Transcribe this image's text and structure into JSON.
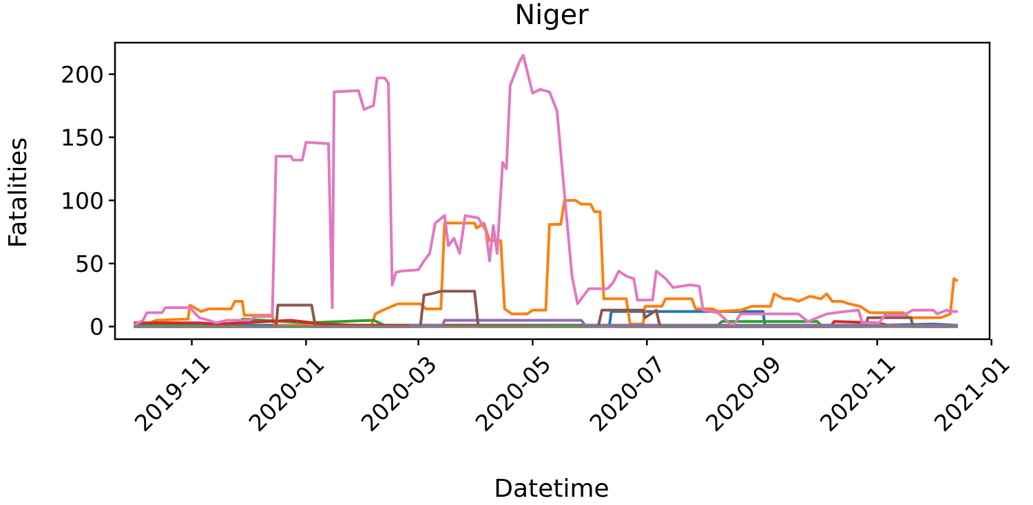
{
  "chart_data": {
    "type": "line",
    "title": "Niger",
    "xlabel": "Datetime",
    "ylabel": "Fatalities",
    "grid": false,
    "xlim": [
      "2019-09-21",
      "2020-12-31"
    ],
    "ylim": [
      -10,
      225
    ],
    "x_ticks": [
      "2019-11-01",
      "2020-01-01",
      "2020-03-01",
      "2020-05-01",
      "2020-07-01",
      "2020-09-01",
      "2020-11-01",
      "2021-01-01"
    ],
    "x_tick_labels": [
      "2019-11",
      "2020-01",
      "2020-03",
      "2020-05",
      "2020-07",
      "2020-09",
      "2020-11",
      "2021-01"
    ],
    "y_ticks": [
      0,
      50,
      100,
      150,
      200
    ],
    "series_order": [
      "blue",
      "orange",
      "green",
      "red",
      "purple",
      "brown",
      "pink",
      "gray"
    ],
    "colors": {
      "blue": "#1f77b4",
      "orange": "#ff7f0e",
      "green": "#2ca02c",
      "red": "#d62728",
      "purple": "#9467bd",
      "brown": "#8c564b",
      "pink": "#e377c2",
      "gray": "#7f7f7f"
    },
    "series": {
      "blue": [
        [
          "2019-10-01",
          1
        ],
        [
          "2019-11-01",
          1
        ],
        [
          "2020-01-01",
          1
        ],
        [
          "2020-06-11",
          1
        ],
        [
          "2020-06-12",
          12
        ],
        [
          "2020-09-01",
          12
        ],
        [
          "2020-09-02",
          1
        ],
        [
          "2020-11-01",
          1
        ],
        [
          "2020-12-01",
          2
        ],
        [
          "2020-12-14",
          1
        ]
      ],
      "orange": [
        [
          "2019-10-01",
          0
        ],
        [
          "2019-10-08",
          2
        ],
        [
          "2019-10-13",
          5
        ],
        [
          "2019-10-30",
          6
        ],
        [
          "2019-10-31",
          17
        ],
        [
          "2019-11-06",
          12
        ],
        [
          "2019-11-10",
          14
        ],
        [
          "2019-11-22",
          14
        ],
        [
          "2019-11-24",
          20
        ],
        [
          "2019-11-28",
          20
        ],
        [
          "2019-11-29",
          9
        ],
        [
          "2019-12-14",
          9
        ],
        [
          "2019-12-15",
          1
        ],
        [
          "2020-02-05",
          1
        ],
        [
          "2020-02-07",
          10
        ],
        [
          "2020-02-11",
          13
        ],
        [
          "2020-02-19",
          18
        ],
        [
          "2020-03-02",
          18
        ],
        [
          "2020-03-05",
          14
        ],
        [
          "2020-03-13",
          14
        ],
        [
          "2020-03-15",
          82
        ],
        [
          "2020-03-31",
          82
        ],
        [
          "2020-04-01",
          78
        ],
        [
          "2020-04-05",
          82
        ],
        [
          "2020-04-08",
          68
        ],
        [
          "2020-04-14",
          68
        ],
        [
          "2020-04-16",
          14
        ],
        [
          "2020-04-20",
          10
        ],
        [
          "2020-04-28",
          10
        ],
        [
          "2020-05-01",
          13
        ],
        [
          "2020-05-08",
          13
        ],
        [
          "2020-05-10",
          81
        ],
        [
          "2020-05-16",
          81
        ],
        [
          "2020-05-18",
          100
        ],
        [
          "2020-05-24",
          100
        ],
        [
          "2020-05-27",
          97
        ],
        [
          "2020-06-01",
          97
        ],
        [
          "2020-06-03",
          91
        ],
        [
          "2020-06-06",
          91
        ],
        [
          "2020-06-08",
          22
        ],
        [
          "2020-06-20",
          22
        ],
        [
          "2020-06-22",
          2
        ],
        [
          "2020-06-29",
          2
        ],
        [
          "2020-06-30",
          16
        ],
        [
          "2020-07-09",
          16
        ],
        [
          "2020-07-11",
          22
        ],
        [
          "2020-07-25",
          22
        ],
        [
          "2020-07-27",
          14
        ],
        [
          "2020-08-05",
          14
        ],
        [
          "2020-08-08",
          12
        ],
        [
          "2020-08-20",
          13
        ],
        [
          "2020-08-26",
          16
        ],
        [
          "2020-09-05",
          16
        ],
        [
          "2020-09-07",
          26
        ],
        [
          "2020-09-12",
          22
        ],
        [
          "2020-09-16",
          22
        ],
        [
          "2020-09-20",
          20
        ],
        [
          "2020-09-26",
          24
        ],
        [
          "2020-10-02",
          22
        ],
        [
          "2020-10-05",
          26
        ],
        [
          "2020-10-08",
          20
        ],
        [
          "2020-10-13",
          20
        ],
        [
          "2020-10-17",
          18
        ],
        [
          "2020-10-23",
          16
        ],
        [
          "2020-10-28",
          11
        ],
        [
          "2020-11-15",
          11
        ],
        [
          "2020-11-18",
          7
        ],
        [
          "2020-12-05",
          7
        ],
        [
          "2020-12-10",
          10
        ],
        [
          "2020-12-12",
          38
        ],
        [
          "2020-12-14",
          36
        ]
      ],
      "green": [
        [
          "2019-10-01",
          1
        ],
        [
          "2019-11-27",
          1
        ],
        [
          "2019-11-28",
          6
        ],
        [
          "2020-01-01",
          3
        ],
        [
          "2020-02-06",
          5
        ],
        [
          "2020-02-12",
          1
        ],
        [
          "2020-08-08",
          1
        ],
        [
          "2020-08-10",
          4
        ],
        [
          "2020-09-30",
          4
        ],
        [
          "2020-10-02",
          1
        ],
        [
          "2020-12-14",
          1
        ]
      ],
      "red": [
        [
          "2019-10-01",
          3
        ],
        [
          "2019-11-05",
          3
        ],
        [
          "2019-11-15",
          2
        ],
        [
          "2019-12-24",
          5
        ],
        [
          "2020-01-10",
          2
        ],
        [
          "2020-01-28",
          1
        ],
        [
          "2020-06-15",
          0
        ],
        [
          "2020-10-07",
          0
        ],
        [
          "2020-10-09",
          4
        ],
        [
          "2020-11-01",
          3
        ],
        [
          "2020-11-07",
          1
        ],
        [
          "2020-12-14",
          1
        ]
      ],
      "purple": [
        [
          "2019-10-01",
          0
        ],
        [
          "2020-02-25",
          0
        ],
        [
          "2020-02-26",
          1
        ],
        [
          "2020-03-14",
          1
        ],
        [
          "2020-03-15",
          5
        ],
        [
          "2020-05-27",
          5
        ],
        [
          "2020-05-29",
          1
        ],
        [
          "2020-12-14",
          1
        ]
      ],
      "brown": [
        [
          "2019-10-01",
          0
        ],
        [
          "2019-12-16",
          0
        ],
        [
          "2019-12-17",
          17
        ],
        [
          "2020-01-04",
          17
        ],
        [
          "2020-01-06",
          0
        ],
        [
          "2020-03-02",
          0
        ],
        [
          "2020-03-04",
          25
        ],
        [
          "2020-03-08",
          26
        ],
        [
          "2020-03-13",
          28
        ],
        [
          "2020-03-31",
          28
        ],
        [
          "2020-04-02",
          0
        ],
        [
          "2020-06-05",
          0
        ],
        [
          "2020-06-07",
          13
        ],
        [
          "2020-06-29",
          13
        ],
        [
          "2020-06-30",
          7
        ],
        [
          "2020-07-06",
          13
        ],
        [
          "2020-07-08",
          0
        ],
        [
          "2020-10-26",
          0
        ],
        [
          "2020-10-27",
          7
        ],
        [
          "2020-11-19",
          7
        ],
        [
          "2020-11-20",
          0
        ],
        [
          "2020-12-14",
          0
        ]
      ],
      "pink": [
        [
          "2019-10-01",
          1
        ],
        [
          "2019-10-06",
          5
        ],
        [
          "2019-10-08",
          11
        ],
        [
          "2019-10-16",
          11
        ],
        [
          "2019-10-18",
          15
        ],
        [
          "2019-10-31",
          15
        ],
        [
          "2019-11-03",
          10
        ],
        [
          "2019-11-05",
          7
        ],
        [
          "2019-11-10",
          5
        ],
        [
          "2019-11-14",
          3
        ],
        [
          "2019-11-20",
          5
        ],
        [
          "2019-12-02",
          5
        ],
        [
          "2019-12-05",
          8
        ],
        [
          "2019-12-14",
          8
        ],
        [
          "2019-12-16",
          135
        ],
        [
          "2019-12-24",
          135
        ],
        [
          "2019-12-25",
          132
        ],
        [
          "2019-12-30",
          132
        ],
        [
          "2020-01-01",
          146
        ],
        [
          "2020-01-13",
          145
        ],
        [
          "2020-01-15",
          15
        ],
        [
          "2020-01-16",
          186
        ],
        [
          "2020-01-29",
          187
        ],
        [
          "2020-02-01",
          172
        ],
        [
          "2020-02-04",
          174
        ],
        [
          "2020-02-06",
          175
        ],
        [
          "2020-02-08",
          197
        ],
        [
          "2020-02-12",
          197
        ],
        [
          "2020-02-14",
          193
        ],
        [
          "2020-02-16",
          33
        ],
        [
          "2020-02-18",
          43
        ],
        [
          "2020-02-21",
          44
        ],
        [
          "2020-03-01",
          45
        ],
        [
          "2020-03-04",
          52
        ],
        [
          "2020-03-07",
          58
        ],
        [
          "2020-03-10",
          82
        ],
        [
          "2020-03-15",
          88
        ],
        [
          "2020-03-17",
          64
        ],
        [
          "2020-03-20",
          70
        ],
        [
          "2020-03-23",
          58
        ],
        [
          "2020-03-26",
          88
        ],
        [
          "2020-04-02",
          86
        ],
        [
          "2020-04-06",
          76
        ],
        [
          "2020-04-08",
          52
        ],
        [
          "2020-04-10",
          80
        ],
        [
          "2020-04-12",
          58
        ],
        [
          "2020-04-15",
          130
        ],
        [
          "2020-04-17",
          125
        ],
        [
          "2020-04-19",
          191
        ],
        [
          "2020-04-24",
          210
        ],
        [
          "2020-04-26",
          215
        ],
        [
          "2020-05-01",
          185
        ],
        [
          "2020-05-05",
          188
        ],
        [
          "2020-05-10",
          186
        ],
        [
          "2020-05-14",
          171
        ],
        [
          "2020-05-18",
          105
        ],
        [
          "2020-05-22",
          40
        ],
        [
          "2020-05-25",
          18
        ],
        [
          "2020-05-31",
          30
        ],
        [
          "2020-06-10",
          30
        ],
        [
          "2020-06-13",
          35
        ],
        [
          "2020-06-16",
          44
        ],
        [
          "2020-06-20",
          40
        ],
        [
          "2020-06-24",
          38
        ],
        [
          "2020-06-26",
          21
        ],
        [
          "2020-07-04",
          21
        ],
        [
          "2020-07-06",
          44
        ],
        [
          "2020-07-11",
          38
        ],
        [
          "2020-07-15",
          31
        ],
        [
          "2020-07-24",
          33
        ],
        [
          "2020-07-29",
          32
        ],
        [
          "2020-07-31",
          13
        ],
        [
          "2020-08-08",
          11
        ],
        [
          "2020-08-16",
          0
        ],
        [
          "2020-08-20",
          10
        ],
        [
          "2020-09-20",
          10
        ],
        [
          "2020-09-25",
          4
        ],
        [
          "2020-10-05",
          10
        ],
        [
          "2020-10-15",
          12
        ],
        [
          "2020-10-22",
          13
        ],
        [
          "2020-10-24",
          3
        ],
        [
          "2020-11-02",
          3
        ],
        [
          "2020-11-05",
          9
        ],
        [
          "2020-11-15",
          9
        ],
        [
          "2020-11-20",
          13
        ],
        [
          "2020-12-01",
          13
        ],
        [
          "2020-12-03",
          10
        ],
        [
          "2020-12-08",
          13
        ],
        [
          "2020-12-10",
          12
        ],
        [
          "2020-12-14",
          12
        ]
      ],
      "gray": [
        [
          "2019-10-01",
          0
        ],
        [
          "2020-12-14",
          0
        ]
      ]
    }
  }
}
